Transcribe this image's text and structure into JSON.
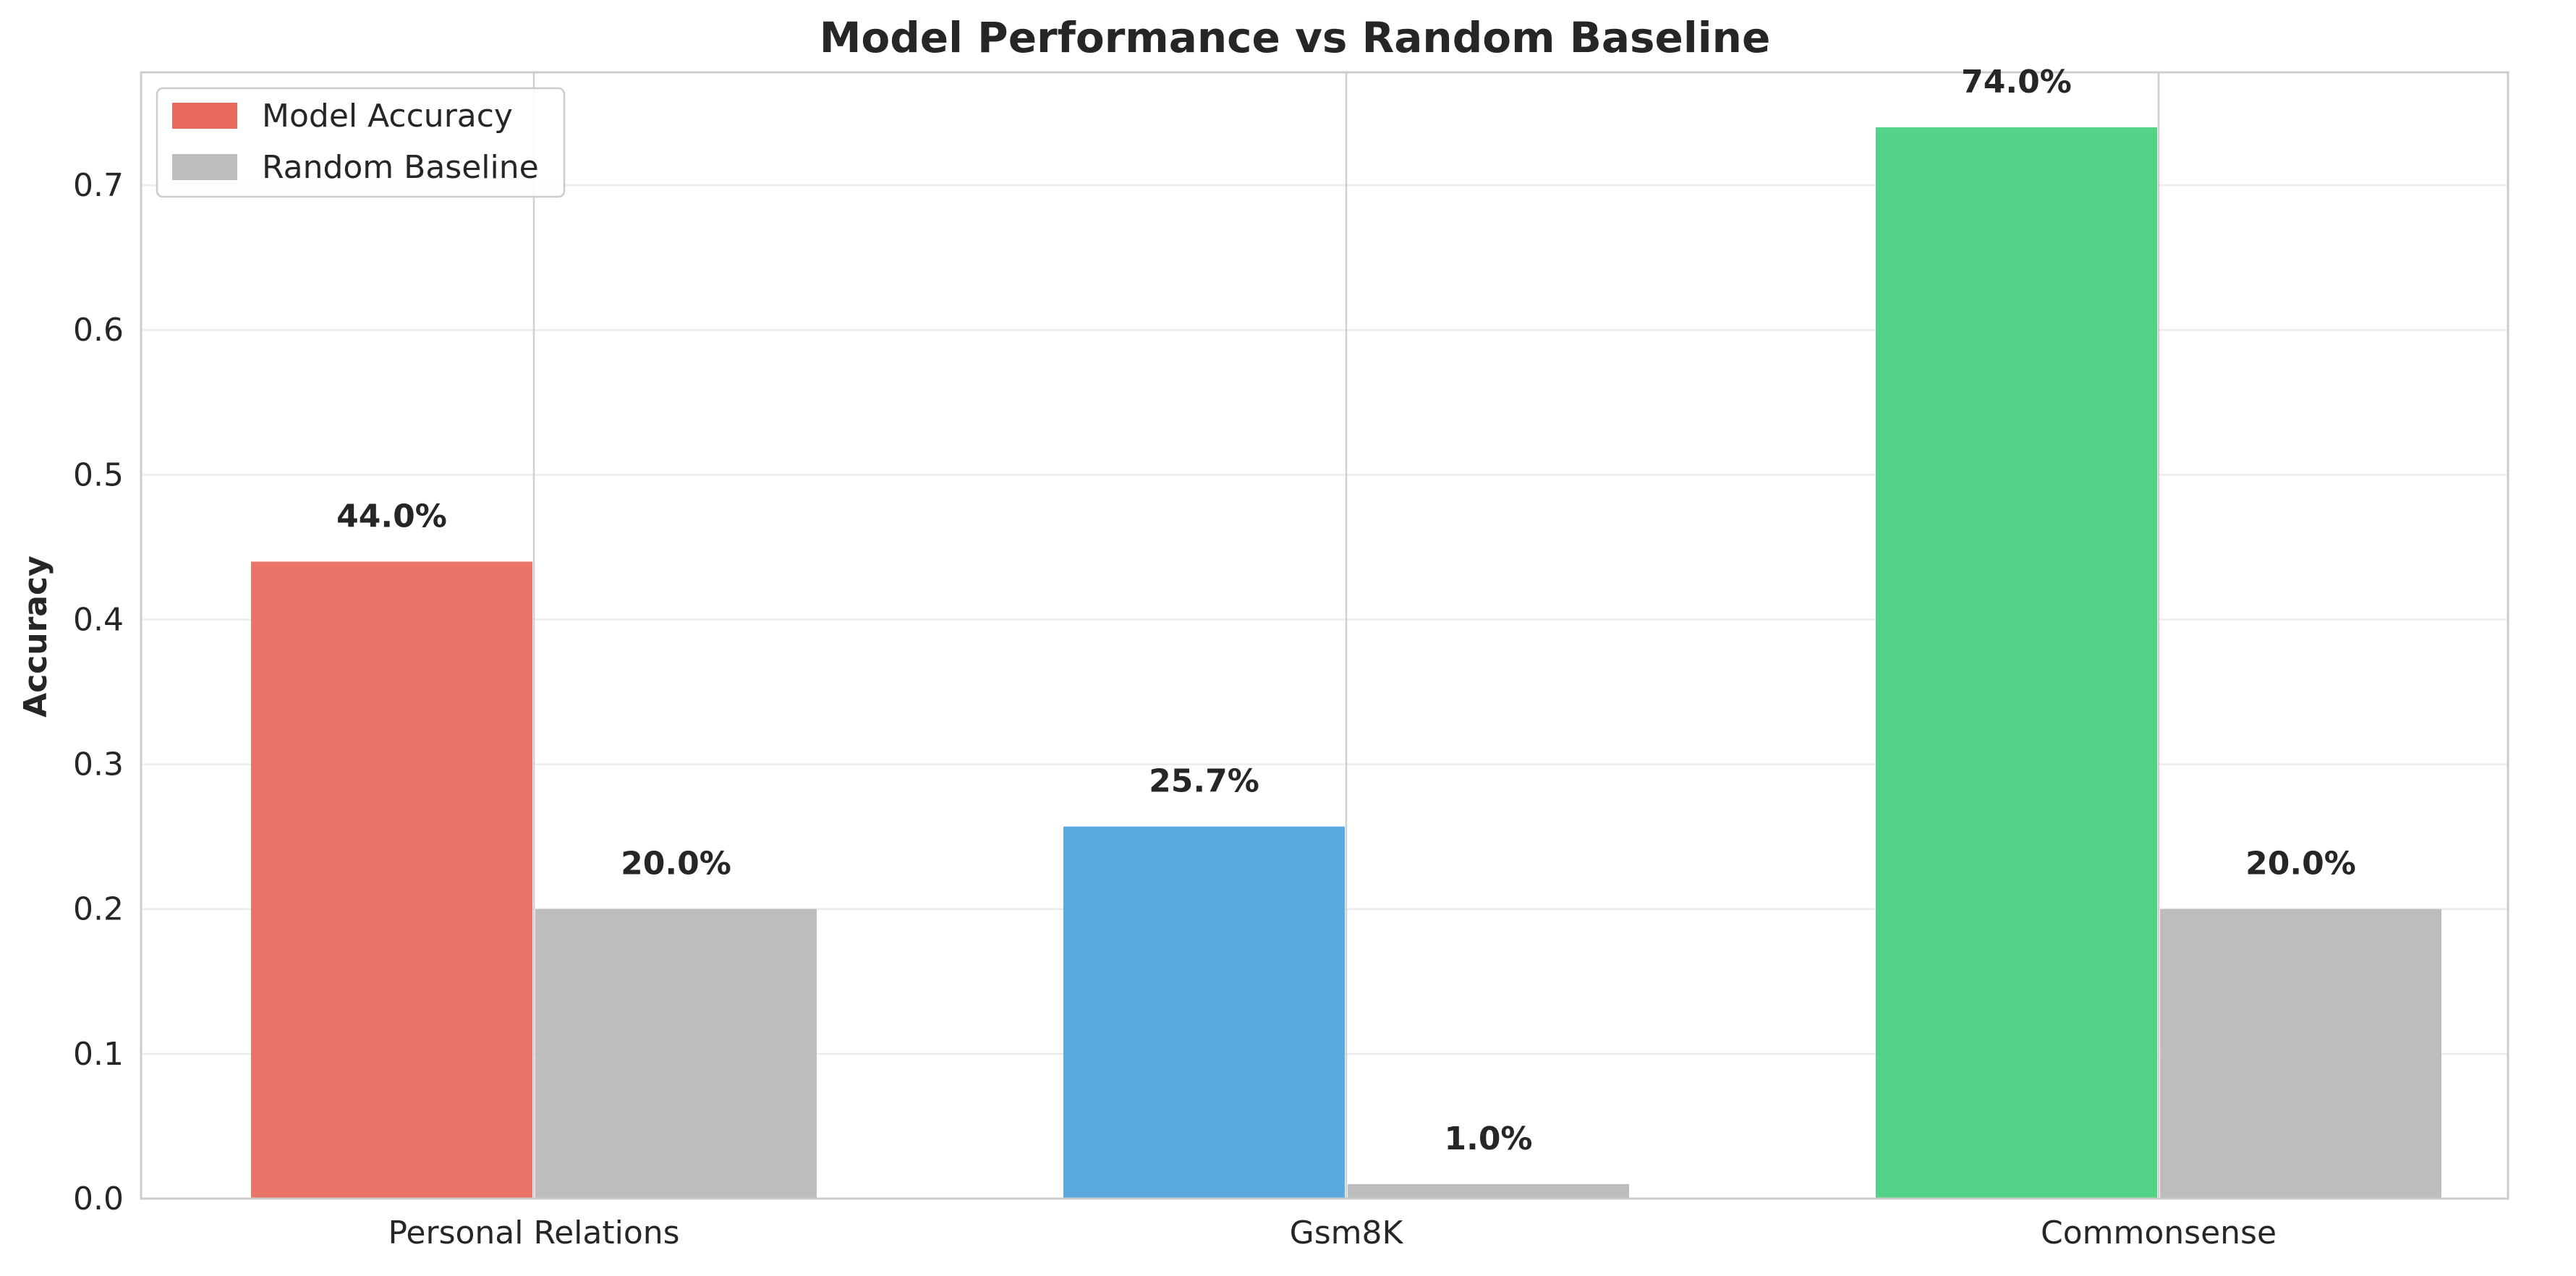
{
  "chart_data": {
    "type": "bar",
    "title": "Model Performance vs Random Baseline",
    "xlabel": "",
    "ylabel": "Accuracy",
    "categories": [
      "Personal Relations",
      "Gsm8K",
      "Commonsense"
    ],
    "ylim": [
      0,
      0.778
    ],
    "yticks": [
      "0.0",
      "0.1",
      "0.2",
      "0.3",
      "0.4",
      "0.5",
      "0.6",
      "0.7"
    ],
    "grid": true,
    "legend_position": "top-left",
    "series": [
      {
        "name": "Model Accuracy",
        "values": [
          0.44,
          0.257,
          0.74
        ],
        "labels": [
          "44.0%",
          "25.7%",
          "74.0%"
        ],
        "colors": [
          "#e8695d",
          "#4ea4df",
          "#45d07f"
        ]
      },
      {
        "name": "Random Baseline",
        "values": [
          0.2,
          0.01,
          0.2
        ],
        "labels": [
          "20.0%",
          "1.0%",
          "20.0%"
        ],
        "colors": [
          "#bdbdbd",
          "#bdbdbd",
          "#bdbdbd"
        ]
      }
    ],
    "legend": [
      {
        "label": "Model Accuracy",
        "color": "#e8695d"
      },
      {
        "label": "Random Baseline",
        "color": "#bdbdbd"
      }
    ]
  }
}
